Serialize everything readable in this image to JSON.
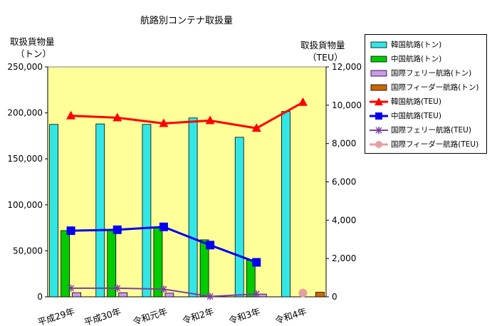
{
  "chart_data": {
    "type": "bar+line",
    "title": "航路別コンテナ取扱量",
    "y_left_label_line1": "取扱貨物量",
    "y_left_label_line2": "（トン）",
    "y_right_label_line1": "取扱貨物量",
    "y_right_label_line2": "（TEU）",
    "categories": [
      "平成29年",
      "平成30年",
      "令和元年",
      "令和2年",
      "令和3年",
      "令和4年"
    ],
    "y_left": {
      "min": 0,
      "max": 250000,
      "step": 50000,
      "ticks": [
        "0",
        "50,000",
        "100,000",
        "150,000",
        "200,000",
        "250,000"
      ]
    },
    "y_right": {
      "min": 0,
      "max": 12000,
      "step": 2000,
      "ticks": [
        "0",
        "2,000",
        "4,000",
        "6,000",
        "8,000",
        "10,000",
        "12,000"
      ]
    },
    "bar_series": [
      {
        "name": "韓国航路(トン)",
        "color": "#33e6e6",
        "values": [
          187500,
          188000,
          187500,
          194500,
          173500,
          201500
        ]
      },
      {
        "name": "中国航路(トン)",
        "color": "#00cc00",
        "values": [
          72000,
          72000,
          75000,
          62000,
          40000,
          null
        ]
      },
      {
        "name": "国際フェリー航路(トン)",
        "color": "#cc99ee",
        "values": [
          4500,
          4500,
          4000,
          500,
          3000,
          null
        ]
      },
      {
        "name": "国際フィーダー航路(トン)",
        "color": "#cc6600",
        "values": [
          null,
          null,
          null,
          null,
          null,
          5000
        ]
      }
    ],
    "line_series": [
      {
        "name": "韓国航路(TEU)",
        "color": "#ff0000",
        "marker": "triangle",
        "values": [
          9450,
          9350,
          9050,
          9200,
          8800,
          10150
        ]
      },
      {
        "name": "中国航路(TEU)",
        "color": "#0000ee",
        "marker": "square",
        "values": [
          3450,
          3500,
          3650,
          2700,
          1800,
          null
        ]
      },
      {
        "name": "国際フェリー航路(TEU)",
        "color": "#7a3fa0",
        "marker": "star",
        "values": [
          450,
          450,
          400,
          20,
          150,
          null
        ]
      },
      {
        "name": "国際フィーダー航路(TEU)",
        "color": "#e6a0a0",
        "marker": "circle",
        "values": [
          null,
          null,
          null,
          null,
          null,
          200
        ]
      }
    ],
    "plot_background": "#ffff99",
    "grid": false,
    "legend_position": "right"
  }
}
